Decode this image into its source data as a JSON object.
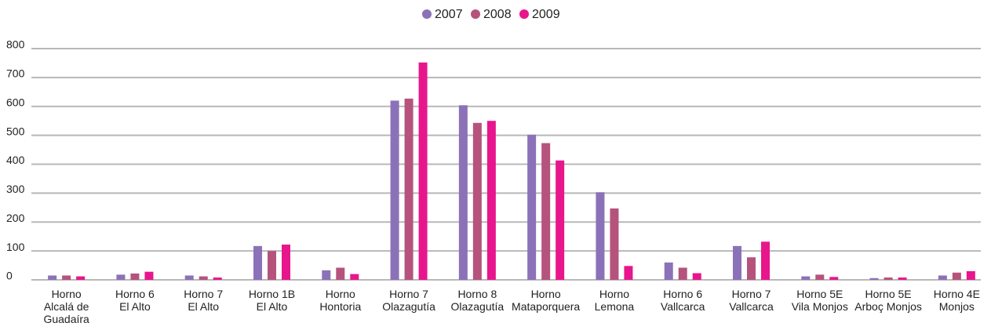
{
  "chart_data": {
    "type": "bar",
    "categories": [
      "Horno\nAlcalá de\nGuadaíra",
      "Horno 6\nEl Alto",
      "Horno 7\nEl Alto",
      "Horno 1B\nEl Alto",
      "Horno\nHontoria",
      "Horno 7\nOlazagutía",
      "Horno 8\nOlazagutía",
      "Horno\nMataporquera",
      "Horno\nLemona",
      "Horno 6\nVallcarca",
      "Horno 7\nVallcarca",
      "Horno 5E\nVila Monjos",
      "Horno 5E\nArboç Monjos",
      "Horno 4E\nMonjos"
    ],
    "series": [
      {
        "name": "2007",
        "color": "#8b72b8",
        "values": [
          15,
          18,
          15,
          117,
          33,
          620,
          604,
          502,
          303,
          60,
          117,
          12,
          6,
          15
        ]
      },
      {
        "name": "2008",
        "color": "#b5537d",
        "values": [
          15,
          22,
          12,
          100,
          42,
          627,
          543,
          473,
          247,
          42,
          78,
          18,
          8,
          25
        ]
      },
      {
        "name": "2009",
        "color": "#e8168c",
        "values": [
          12,
          28,
          8,
          122,
          20,
          752,
          550,
          413,
          48,
          23,
          132,
          10,
          8,
          30
        ]
      }
    ],
    "ylim": [
      0,
      800
    ],
    "yticks": [
      0,
      100,
      200,
      300,
      400,
      500,
      600,
      700,
      800
    ],
    "grid": true,
    "legend": "top"
  }
}
